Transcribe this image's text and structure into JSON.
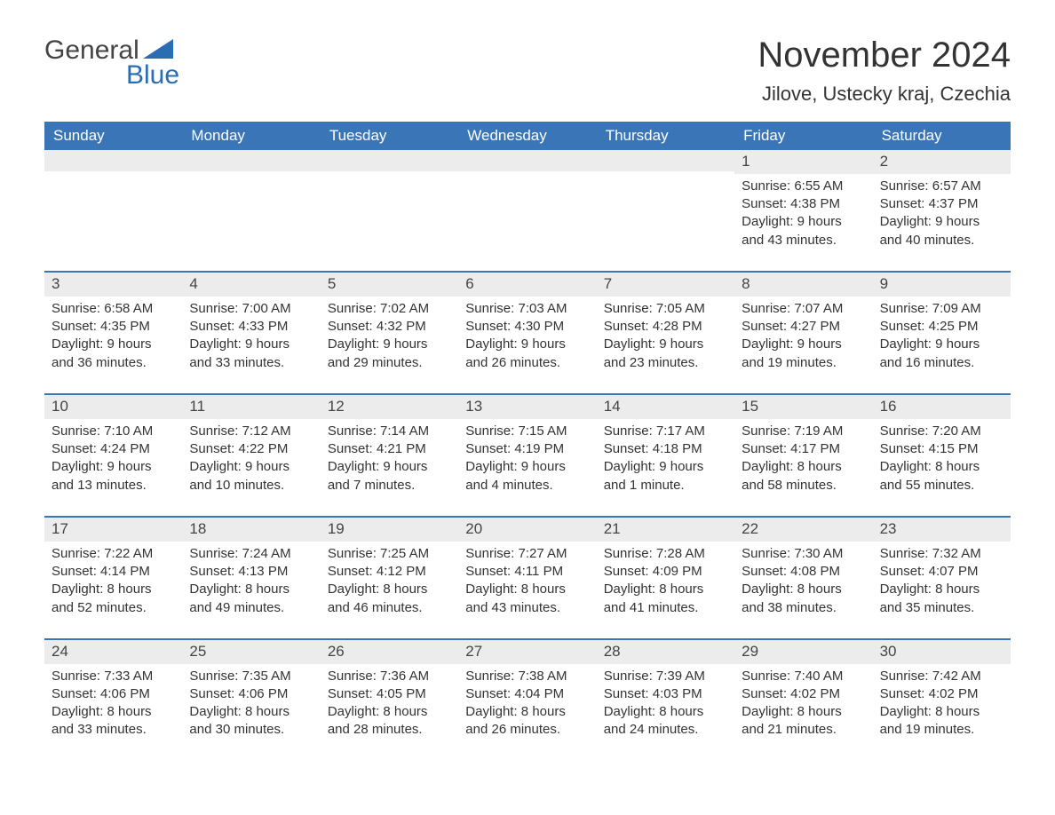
{
  "logo": {
    "text1": "General",
    "text2": "Blue"
  },
  "title": "November 2024",
  "location": "Jilove, Ustecky kraj, Czechia",
  "colors": {
    "header_bg": "#3a76b7",
    "header_text": "#ffffff",
    "accent": "#2a6db3",
    "row_bg": "#ececec",
    "text": "#333333",
    "page_bg": "#ffffff"
  },
  "day_names": [
    "Sunday",
    "Monday",
    "Tuesday",
    "Wednesday",
    "Thursday",
    "Friday",
    "Saturday"
  ],
  "weeks": [
    [
      null,
      null,
      null,
      null,
      null,
      {
        "day": 1,
        "sunrise": "6:55 AM",
        "sunset": "4:38 PM",
        "daylight": "9 hours and 43 minutes."
      },
      {
        "day": 2,
        "sunrise": "6:57 AM",
        "sunset": "4:37 PM",
        "daylight": "9 hours and 40 minutes."
      }
    ],
    [
      {
        "day": 3,
        "sunrise": "6:58 AM",
        "sunset": "4:35 PM",
        "daylight": "9 hours and 36 minutes."
      },
      {
        "day": 4,
        "sunrise": "7:00 AM",
        "sunset": "4:33 PM",
        "daylight": "9 hours and 33 minutes."
      },
      {
        "day": 5,
        "sunrise": "7:02 AM",
        "sunset": "4:32 PM",
        "daylight": "9 hours and 29 minutes."
      },
      {
        "day": 6,
        "sunrise": "7:03 AM",
        "sunset": "4:30 PM",
        "daylight": "9 hours and 26 minutes."
      },
      {
        "day": 7,
        "sunrise": "7:05 AM",
        "sunset": "4:28 PM",
        "daylight": "9 hours and 23 minutes."
      },
      {
        "day": 8,
        "sunrise": "7:07 AM",
        "sunset": "4:27 PM",
        "daylight": "9 hours and 19 minutes."
      },
      {
        "day": 9,
        "sunrise": "7:09 AM",
        "sunset": "4:25 PM",
        "daylight": "9 hours and 16 minutes."
      }
    ],
    [
      {
        "day": 10,
        "sunrise": "7:10 AM",
        "sunset": "4:24 PM",
        "daylight": "9 hours and 13 minutes."
      },
      {
        "day": 11,
        "sunrise": "7:12 AM",
        "sunset": "4:22 PM",
        "daylight": "9 hours and 10 minutes."
      },
      {
        "day": 12,
        "sunrise": "7:14 AM",
        "sunset": "4:21 PM",
        "daylight": "9 hours and 7 minutes."
      },
      {
        "day": 13,
        "sunrise": "7:15 AM",
        "sunset": "4:19 PM",
        "daylight": "9 hours and 4 minutes."
      },
      {
        "day": 14,
        "sunrise": "7:17 AM",
        "sunset": "4:18 PM",
        "daylight": "9 hours and 1 minute."
      },
      {
        "day": 15,
        "sunrise": "7:19 AM",
        "sunset": "4:17 PM",
        "daylight": "8 hours and 58 minutes."
      },
      {
        "day": 16,
        "sunrise": "7:20 AM",
        "sunset": "4:15 PM",
        "daylight": "8 hours and 55 minutes."
      }
    ],
    [
      {
        "day": 17,
        "sunrise": "7:22 AM",
        "sunset": "4:14 PM",
        "daylight": "8 hours and 52 minutes."
      },
      {
        "day": 18,
        "sunrise": "7:24 AM",
        "sunset": "4:13 PM",
        "daylight": "8 hours and 49 minutes."
      },
      {
        "day": 19,
        "sunrise": "7:25 AM",
        "sunset": "4:12 PM",
        "daylight": "8 hours and 46 minutes."
      },
      {
        "day": 20,
        "sunrise": "7:27 AM",
        "sunset": "4:11 PM",
        "daylight": "8 hours and 43 minutes."
      },
      {
        "day": 21,
        "sunrise": "7:28 AM",
        "sunset": "4:09 PM",
        "daylight": "8 hours and 41 minutes."
      },
      {
        "day": 22,
        "sunrise": "7:30 AM",
        "sunset": "4:08 PM",
        "daylight": "8 hours and 38 minutes."
      },
      {
        "day": 23,
        "sunrise": "7:32 AM",
        "sunset": "4:07 PM",
        "daylight": "8 hours and 35 minutes."
      }
    ],
    [
      {
        "day": 24,
        "sunrise": "7:33 AM",
        "sunset": "4:06 PM",
        "daylight": "8 hours and 33 minutes."
      },
      {
        "day": 25,
        "sunrise": "7:35 AM",
        "sunset": "4:06 PM",
        "daylight": "8 hours and 30 minutes."
      },
      {
        "day": 26,
        "sunrise": "7:36 AM",
        "sunset": "4:05 PM",
        "daylight": "8 hours and 28 minutes."
      },
      {
        "day": 27,
        "sunrise": "7:38 AM",
        "sunset": "4:04 PM",
        "daylight": "8 hours and 26 minutes."
      },
      {
        "day": 28,
        "sunrise": "7:39 AM",
        "sunset": "4:03 PM",
        "daylight": "8 hours and 24 minutes."
      },
      {
        "day": 29,
        "sunrise": "7:40 AM",
        "sunset": "4:02 PM",
        "daylight": "8 hours and 21 minutes."
      },
      {
        "day": 30,
        "sunrise": "7:42 AM",
        "sunset": "4:02 PM",
        "daylight": "8 hours and 19 minutes."
      }
    ]
  ],
  "labels": {
    "sunrise": "Sunrise:",
    "sunset": "Sunset:",
    "daylight": "Daylight:"
  }
}
